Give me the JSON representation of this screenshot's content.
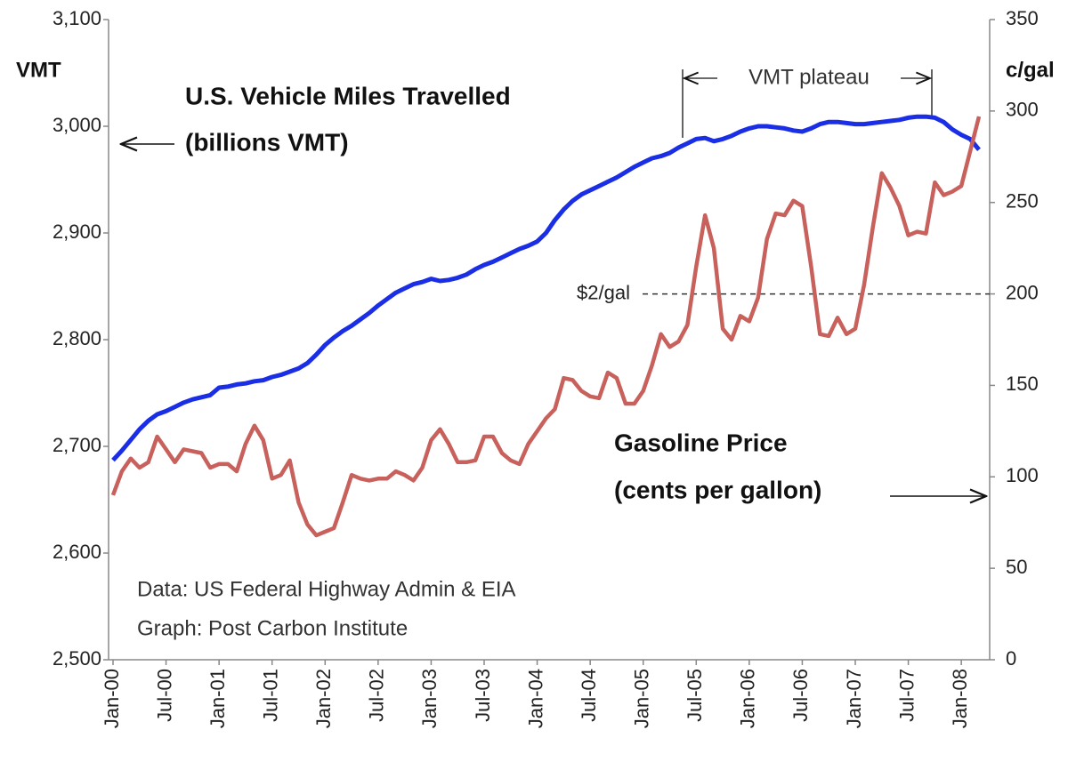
{
  "chart_data": {
    "type": "line",
    "categories": [
      "Jan-00",
      null,
      null,
      null,
      null,
      null,
      "Jul-00",
      null,
      null,
      null,
      null,
      null,
      "Jan-01",
      null,
      null,
      null,
      null,
      null,
      "Jul-01",
      null,
      null,
      null,
      null,
      null,
      "Jan-02",
      null,
      null,
      null,
      null,
      null,
      "Jul-02",
      null,
      null,
      null,
      null,
      null,
      "Jan-03",
      null,
      null,
      null,
      null,
      null,
      "Jul-03",
      null,
      null,
      null,
      null,
      null,
      "Jan-04",
      null,
      null,
      null,
      null,
      null,
      "Jul-04",
      null,
      null,
      null,
      null,
      null,
      "Jan-05",
      null,
      null,
      null,
      null,
      null,
      "Jul-05",
      null,
      null,
      null,
      null,
      null,
      "Jan-06",
      null,
      null,
      null,
      null,
      null,
      "Jul-06",
      null,
      null,
      null,
      null,
      null,
      "Jan-07",
      null,
      null,
      null,
      null,
      null,
      "Jul-07",
      null,
      null,
      null,
      null,
      null,
      "Jan-08",
      null,
      null
    ],
    "series": [
      {
        "name": "U.S. Vehicle Miles Travelled",
        "subname": "(billions VMT)",
        "color": "#1a2ee6",
        "axis": "y",
        "values": [
          2687,
          2696,
          2706,
          2716,
          2724,
          2730,
          2733,
          2737,
          2741,
          2744,
          2746,
          2748,
          2755,
          2756,
          2758,
          2759,
          2761,
          2762,
          2765,
          2767,
          2770,
          2773,
          2778,
          2786,
          2795,
          2802,
          2808,
          2813,
          2819,
          2825,
          2832,
          2838,
          2844,
          2848,
          2852,
          2854,
          2857,
          2855,
          2856,
          2858,
          2861,
          2866,
          2870,
          2873,
          2877,
          2881,
          2885,
          2888,
          2892,
          2900,
          2912,
          2922,
          2930,
          2936,
          2940,
          2944,
          2948,
          2952,
          2957,
          2962,
          2966,
          2970,
          2972,
          2975,
          2980,
          2984,
          2988,
          2989,
          2986,
          2988,
          2991,
          2995,
          2998,
          3000,
          3000,
          2999,
          2998,
          2996,
          2995,
          2998,
          3002,
          3004,
          3004,
          3003,
          3002,
          3002,
          3003,
          3004,
          3005,
          3006,
          3008,
          3009,
          3009,
          3008,
          3004,
          2997,
          2992,
          2988,
          2978
        ]
      },
      {
        "name": "Gasoline Price",
        "subname": "(cents per gallon)",
        "color": "#c8605c",
        "axis": "y2",
        "values": [
          90,
          103,
          110,
          105,
          108,
          122,
          115,
          108,
          115,
          114,
          113,
          105,
          107,
          107,
          103,
          118,
          128,
          120,
          99,
          101,
          109,
          86,
          74,
          68,
          70,
          72,
          86,
          101,
          99,
          98,
          99,
          99,
          103,
          101,
          98,
          105,
          120,
          126,
          118,
          108,
          108,
          109,
          122,
          122,
          113,
          109,
          107,
          118,
          125,
          132,
          137,
          154,
          153,
          147,
          144,
          143,
          157,
          154,
          140,
          140,
          147,
          161,
          178,
          171,
          174,
          183,
          215,
          243,
          225,
          181,
          175,
          188,
          185,
          198,
          230,
          244,
          243,
          251,
          248,
          215,
          178,
          177,
          187,
          178,
          181,
          205,
          237,
          266,
          258,
          248,
          232,
          234,
          233,
          261,
          254,
          256,
          259,
          278,
          297
        ]
      }
    ],
    "ylabel": "VMT",
    "y2label": "c/gal",
    "ylim": [
      2500,
      3100
    ],
    "yticks": [
      {
        "value": 2500,
        "label": "2,500"
      },
      {
        "value": 2600,
        "label": "2,600"
      },
      {
        "value": 2700,
        "label": "2,700"
      },
      {
        "value": 2800,
        "label": "2,800"
      },
      {
        "value": 2900,
        "label": "2,900"
      },
      {
        "value": 3000,
        "label": "3,000"
      },
      {
        "value": 3100,
        "label": "3,100"
      }
    ],
    "y2lim": [
      0,
      350
    ],
    "y2ticks": [
      0,
      50,
      100,
      150,
      200,
      250,
      300,
      350
    ],
    "reference_line": {
      "value": 200,
      "label": "$2/gal",
      "axis": "y2"
    },
    "annotations": {
      "plateau": "VMT plateau",
      "source": "Data:  US Federal Highway Admin & EIA",
      "credit": "Graph: Post Carbon Institute"
    },
    "grid": false
  }
}
